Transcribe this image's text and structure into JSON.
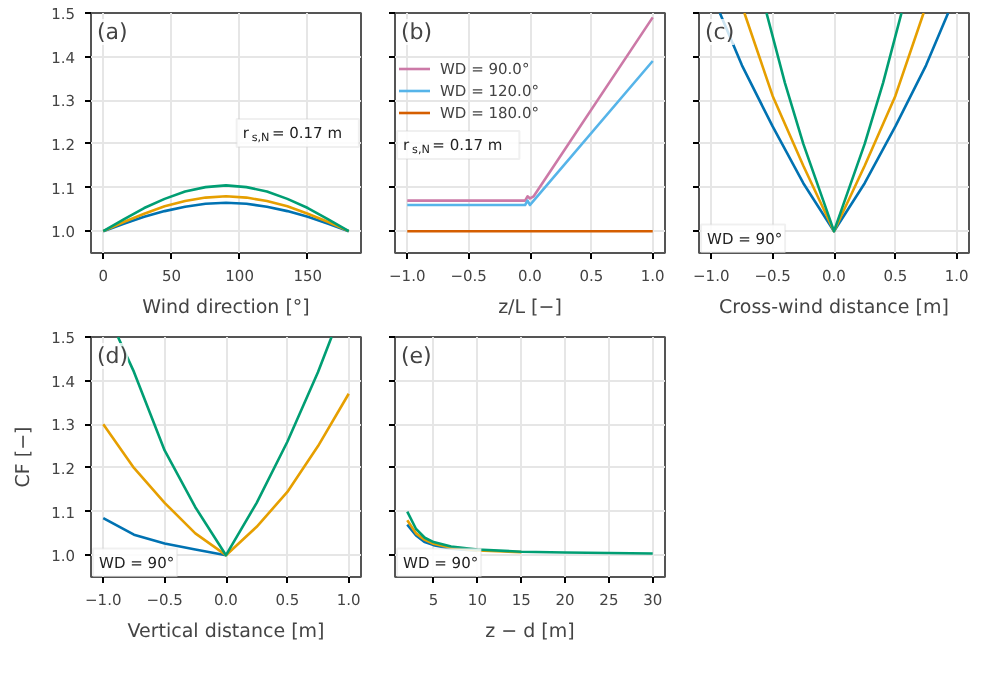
{
  "chart_data": [
    {
      "type": "line",
      "title": "(a)",
      "xlabel": "Wind direction [°]",
      "xlim": [
        -9,
        189
      ],
      "xticks": [
        0,
        50,
        100,
        150
      ],
      "ylim": [
        0.95,
        1.5
      ],
      "yticks": [
        {
          "value": 1.0,
          "label": "1.0"
        },
        {
          "value": 1.1,
          "label": "1.1"
        },
        {
          "value": 1.2,
          "label": "1.2"
        },
        {
          "value": 1.3,
          "label": "1.3"
        },
        {
          "value": 1.4,
          "label": "1.4"
        },
        {
          "value": 1.5,
          "label": "1.5"
        }
      ],
      "grid": true,
      "annotations": [
        "r$_{s,N}$ = 0.17 m"
      ],
      "series": [
        {
          "color": "#0072b2",
          "x": [
            0,
            15,
            30,
            45,
            60,
            75,
            90,
            105,
            120,
            135,
            150,
            165,
            180
          ],
          "values": [
            1.0,
            1.017,
            1.033,
            1.046,
            1.056,
            1.063,
            1.065,
            1.063,
            1.056,
            1.046,
            1.033,
            1.017,
            1.0
          ]
        },
        {
          "color": "#e69f00",
          "x": [
            0,
            15,
            30,
            45,
            60,
            75,
            90,
            105,
            120,
            135,
            150,
            165,
            180
          ],
          "values": [
            1.0,
            1.021,
            1.04,
            1.057,
            1.069,
            1.077,
            1.08,
            1.077,
            1.069,
            1.057,
            1.04,
            1.021,
            1.0
          ]
        },
        {
          "color": "#009e73",
          "x": [
            0,
            15,
            30,
            45,
            60,
            75,
            90,
            105,
            120,
            135,
            150,
            165,
            180
          ],
          "values": [
            1.0,
            1.027,
            1.053,
            1.074,
            1.091,
            1.101,
            1.105,
            1.101,
            1.091,
            1.074,
            1.053,
            1.027,
            1.0
          ]
        }
      ]
    },
    {
      "type": "line",
      "title": "(b)",
      "xlabel": "z/L [−]",
      "xlim": [
        -1.1,
        1.1
      ],
      "xticks": [
        {
          "value": -1,
          "label": "−1.0"
        },
        {
          "value": -0.5,
          "label": "−0.5"
        },
        {
          "value": 0,
          "label": "0.0"
        },
        {
          "value": 0.5,
          "label": "0.5"
        },
        {
          "value": 1,
          "label": "1.0"
        }
      ],
      "ylim": [
        0.95,
        1.5
      ],
      "yticks": [
        1.0,
        1.1,
        1.2,
        1.3,
        1.4,
        1.5
      ],
      "tick_labels": "x",
      "grid": true,
      "legend": "top left",
      "annotations": [
        "r$_{s,N}$ = 0.17 m"
      ],
      "series": [
        {
          "name": "WD = 90.0°",
          "color": "#cc79a7",
          "x": [
            -1,
            -0.04,
            -0.02,
            0,
            0.03,
            1
          ],
          "values": [
            1.07,
            1.07,
            1.08,
            1.075,
            1.08,
            1.49
          ]
        },
        {
          "name": "WD = 120.0°",
          "color": "#56b4e9",
          "x": [
            -1,
            -0.04,
            -0.02,
            0,
            0.03,
            1
          ],
          "values": [
            1.06,
            1.06,
            1.07,
            1.06,
            1.07,
            1.39
          ]
        },
        {
          "name": "WD = 180.0°",
          "color": "#d55e00",
          "x": [
            -1,
            1
          ],
          "values": [
            1.0,
            1.0
          ]
        }
      ]
    },
    {
      "type": "line",
      "title": "(c)",
      "xlabel": "Cross-wind distance [m]",
      "xlim": [
        -1.1,
        1.1
      ],
      "xticks": [
        {
          "value": -1,
          "label": "−1.0"
        },
        {
          "value": -0.5,
          "label": "−0.5"
        },
        {
          "value": 0,
          "label": "0.0"
        },
        {
          "value": 0.5,
          "label": "0.5"
        },
        {
          "value": 1,
          "label": "1.0"
        }
      ],
      "ylim": [
        0.95,
        1.5
      ],
      "yticks": [
        1.0,
        1.1,
        1.2,
        1.3,
        1.4,
        1.5
      ],
      "tick_labels": "x",
      "grid": true,
      "annotations": [
        "WD = 90°"
      ],
      "series": [
        {
          "color": "#0072b2",
          "x": [
            -0.93,
            -0.75,
            -0.5,
            -0.25,
            0,
            0.25,
            0.5,
            0.75,
            0.93
          ],
          "values": [
            1.5,
            1.38,
            1.24,
            1.11,
            1.0,
            1.11,
            1.24,
            1.38,
            1.5
          ]
        },
        {
          "color": "#e69f00",
          "x": [
            -0.73,
            -0.5,
            -0.25,
            0,
            0.25,
            0.5,
            0.73
          ],
          "values": [
            1.5,
            1.31,
            1.15,
            1.0,
            1.15,
            1.31,
            1.5
          ]
        },
        {
          "color": "#009e73",
          "x": [
            -0.55,
            -0.4,
            -0.25,
            0,
            0.25,
            0.4,
            0.55
          ],
          "values": [
            1.5,
            1.34,
            1.2,
            1.0,
            1.2,
            1.34,
            1.5
          ]
        }
      ]
    },
    {
      "type": "line",
      "title": "(d)",
      "xlabel": "Vertical distance [m]",
      "ylabel": "CF [−]",
      "xlim": [
        -1.1,
        1.1
      ],
      "xticks": [
        {
          "value": -1,
          "label": "−1.0"
        },
        {
          "value": -0.5,
          "label": "−0.5"
        },
        {
          "value": 0,
          "label": "0.0"
        },
        {
          "value": 0.5,
          "label": "0.5"
        },
        {
          "value": 1,
          "label": "1.0"
        }
      ],
      "ylim": [
        0.95,
        1.5
      ],
      "yticks": [
        {
          "value": 1.0,
          "label": "1.0"
        },
        {
          "value": 1.1,
          "label": "1.1"
        },
        {
          "value": 1.2,
          "label": "1.2"
        },
        {
          "value": 1.3,
          "label": "1.3"
        },
        {
          "value": 1.4,
          "label": "1.4"
        },
        {
          "value": 1.5,
          "label": "1.5"
        }
      ],
      "grid": true,
      "annotations": [
        "WD = 90°"
      ],
      "series": [
        {
          "color": "#0072b2",
          "x": [
            -1,
            -0.75,
            -0.5,
            -0.25,
            0
          ],
          "values": [
            1.085,
            1.047,
            1.027,
            1.013,
            1.0
          ]
        },
        {
          "color": "#e69f00",
          "x": [
            -1,
            -0.75,
            -0.5,
            -0.25,
            0,
            0.25,
            0.5,
            0.75,
            1
          ],
          "values": [
            1.3,
            1.2,
            1.12,
            1.05,
            1.0,
            1.065,
            1.145,
            1.25,
            1.37
          ]
        },
        {
          "color": "#009e73",
          "x": [
            -0.88,
            -0.75,
            -0.5,
            -0.25,
            0,
            0.25,
            0.5,
            0.75,
            0.86
          ],
          "values": [
            1.5,
            1.42,
            1.24,
            1.11,
            1.0,
            1.12,
            1.26,
            1.42,
            1.5
          ]
        }
      ]
    },
    {
      "type": "line",
      "title": "(e)",
      "xlabel": "z − d [m]",
      "xlim": [
        0.6,
        31.4
      ],
      "xticks": [
        5,
        10,
        15,
        20,
        25,
        30
      ],
      "ylim": [
        0.95,
        1.5
      ],
      "yticks": [
        1.0,
        1.1,
        1.2,
        1.3,
        1.4,
        1.5
      ],
      "tick_labels": "x",
      "grid": true,
      "annotations": [
        "WD = 90°"
      ],
      "series": [
        {
          "color": "#0072b2",
          "x": [
            2,
            3,
            4,
            5,
            7,
            10
          ],
          "values": [
            1.07,
            1.045,
            1.03,
            1.023,
            1.015,
            1.01
          ]
        },
        {
          "color": "#e69f00",
          "x": [
            2,
            3,
            4,
            5,
            7,
            10,
            15
          ],
          "values": [
            1.08,
            1.05,
            1.035,
            1.026,
            1.017,
            1.011,
            1.007
          ]
        },
        {
          "color": "#009e73",
          "x": [
            2,
            3,
            4,
            5,
            7,
            10,
            15,
            20,
            30
          ],
          "values": [
            1.1,
            1.06,
            1.04,
            1.03,
            1.02,
            1.013,
            1.008,
            1.006,
            1.004
          ]
        }
      ]
    }
  ]
}
